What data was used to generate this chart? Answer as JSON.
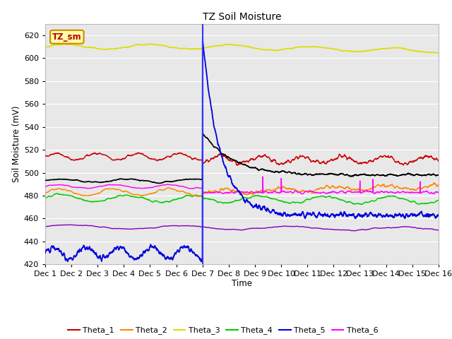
{
  "title": "TZ Soil Moisture",
  "ylabel": "Soil Moisture (mV)",
  "xlabel": "Time",
  "ylim": [
    420,
    630
  ],
  "xlim": [
    0,
    15
  ],
  "xtick_labels": [
    "Dec 1",
    "Dec 2",
    "Dec 3",
    "Dec 4",
    "Dec 5",
    "Dec 6",
    "Dec 7",
    "Dec 8",
    "Dec 9",
    "Dec 10",
    "Dec 11",
    "Dec 12",
    "Dec 13",
    "Dec 14",
    "Dec 15",
    "Dec 16"
  ],
  "bg_color": "#e8e8e8",
  "vline_x": 6.0,
  "vline_color": "#3333ff",
  "series_colors": {
    "Theta_1": "#cc0000",
    "Theta_2": "#ff8800",
    "Theta_3": "#dddd00",
    "Theta_4": "#00cc00",
    "Theta_5": "#0000dd",
    "Theta_6": "#ff00ff",
    "Theta_7": "#8800bb",
    "Theta_avg": "#000000"
  }
}
